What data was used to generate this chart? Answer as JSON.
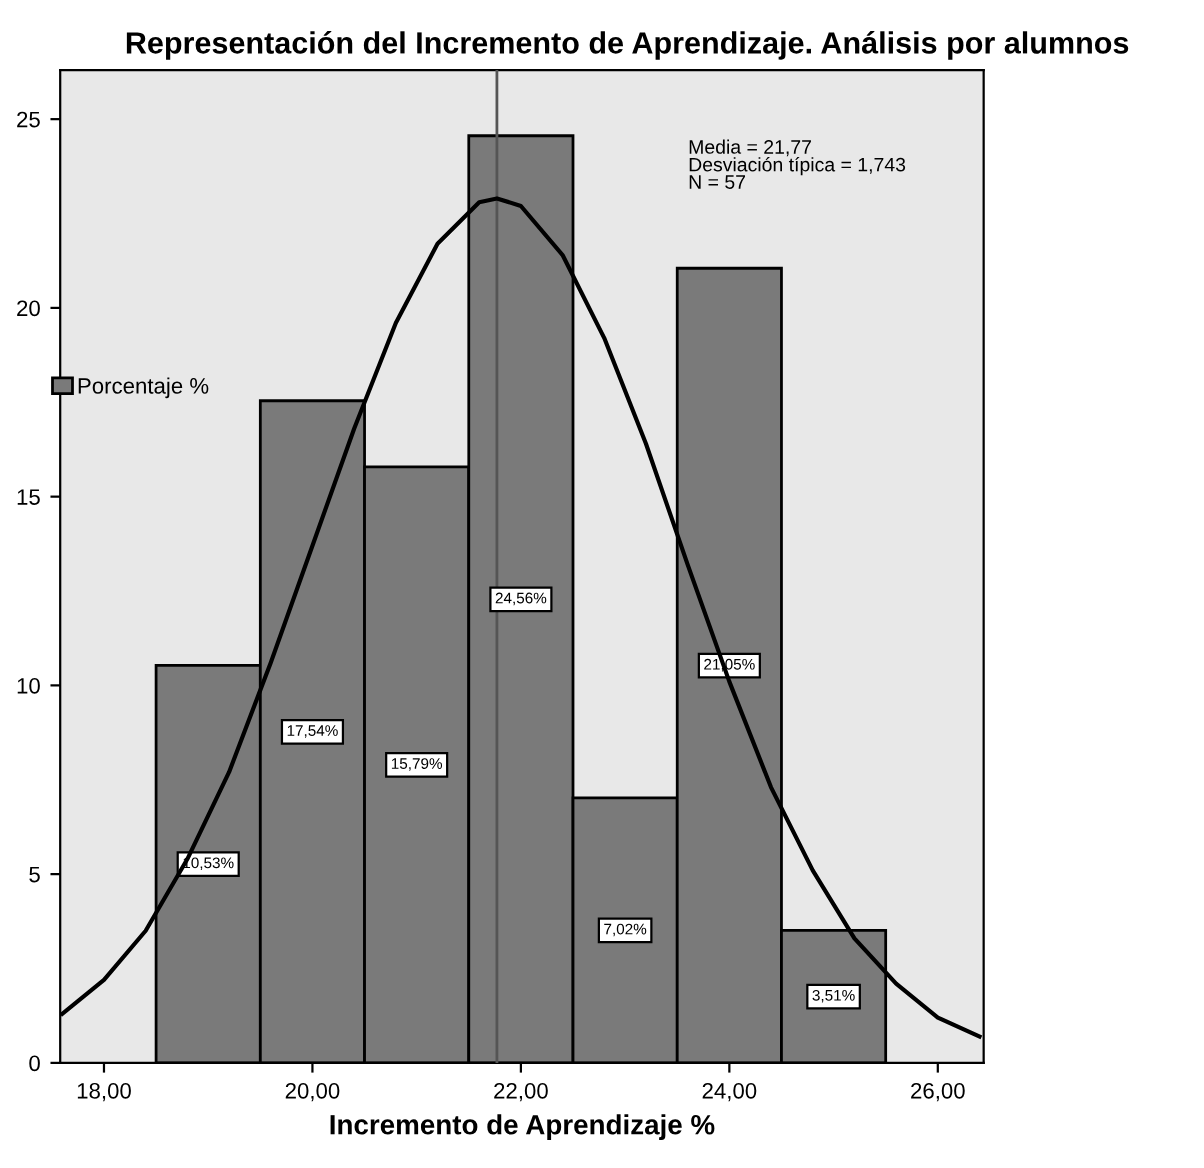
{
  "chart_data": {
    "type": "histogram",
    "title": "Representación del Incremento de Aprendizaje. Análisis por alumnos",
    "xlabel": "Incremento de Aprendizaje %",
    "bins": [
      18.5,
      19.5,
      20.5,
      21.5,
      22.5,
      23.5,
      24.5,
      25.5
    ],
    "series": [
      {
        "name": "Porcentaje %",
        "color": "#7a7a7a",
        "values": [
          10.53,
          17.54,
          15.79,
          24.56,
          7.02,
          21.05,
          3.51
        ],
        "value_labels": [
          "10,53%",
          "17,54%",
          "15,79%",
          "24,56%",
          "7,02%",
          "21,05%",
          "3,51%"
        ]
      },
      {
        "type": "line",
        "color": "#000000",
        "x": [
          17.6,
          18.0,
          18.4,
          18.8,
          19.2,
          19.6,
          20.0,
          20.4,
          20.8,
          21.2,
          21.6,
          21.77,
          22.0,
          22.4,
          22.8,
          23.2,
          23.6,
          24.0,
          24.4,
          24.8,
          25.2,
          25.6,
          26.0,
          26.4
        ],
        "values": [
          1.3,
          2.2,
          3.5,
          5.4,
          7.7,
          10.6,
          13.7,
          16.8,
          19.6,
          21.7,
          22.8,
          22.9,
          22.7,
          21.4,
          19.2,
          16.4,
          13.2,
          10.1,
          7.3,
          5.1,
          3.3,
          2.1,
          1.2,
          0.7
        ]
      }
    ],
    "ref_lines": [
      {
        "axis": "x",
        "value": 21.77,
        "color": "#555555"
      }
    ],
    "annotations": [
      "Media = 21,77\nDesviación típica = 1,743\nN = 57"
    ],
    "xlim": [
      17.58,
      26.44
    ],
    "ylim": [
      0,
      26.3
    ],
    "xticks": [
      {
        "value": 18,
        "label": "18,00"
      },
      {
        "value": 20,
        "label": "20,00"
      },
      {
        "value": 22,
        "label": "22,00"
      },
      {
        "value": 24,
        "label": "24,00"
      },
      {
        "value": 26,
        "label": "26,00"
      }
    ],
    "yticks": [
      0,
      5,
      10,
      15,
      20,
      25
    ],
    "legend": "left",
    "grid": false
  }
}
